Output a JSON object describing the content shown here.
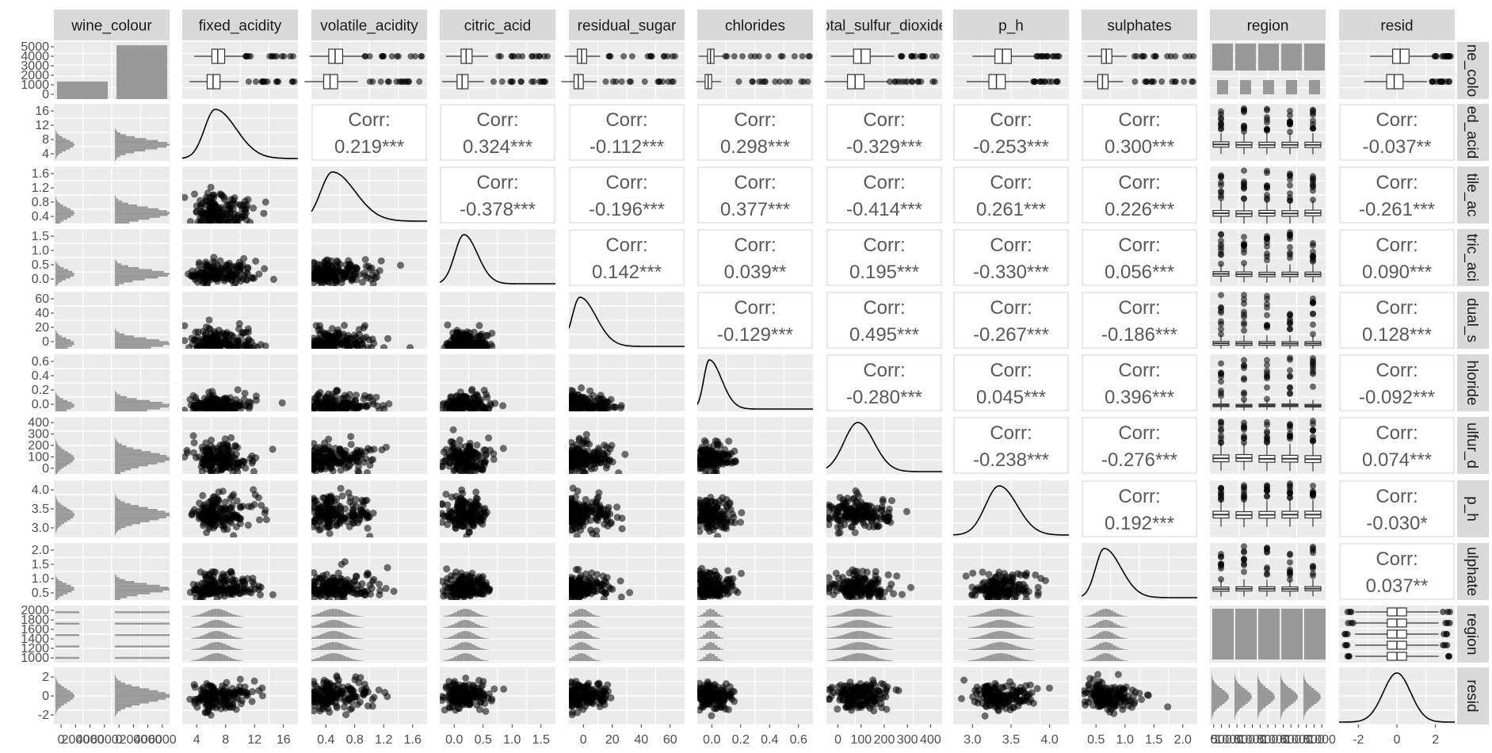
{
  "chart_data": {
    "type": "scatter",
    "layout": "pairs-matrix",
    "variables": [
      "wine_colour",
      "fixed_acidity",
      "volatile_acidity",
      "citric_acid",
      "residual_sugar",
      "chlorides",
      "total_sulfur_dioxide",
      "p_h",
      "sulphates",
      "region",
      "resid"
    ],
    "column_strips": [
      "wine_colour",
      "fixed_acidity",
      "volatile_acidity",
      "citric_acid",
      "residual_sugar",
      "chlorides",
      "otal_sulfur_dioxide",
      "p_h",
      "sulphates",
      "region",
      "resid"
    ],
    "row_strips": [
      "ne_colo",
      "ed_acid",
      "tile_ac",
      "tric_aci",
      "dual_s",
      "hloride",
      "ulfur_d",
      "p_h",
      "ulphate",
      "region",
      "resid"
    ],
    "x_ticks": [
      [
        "0",
        "2000",
        "4000",
        "6000",
        "0",
        "2000",
        "4000",
        "6000"
      ],
      [
        "4",
        "8",
        "12",
        "16"
      ],
      [
        "0.4",
        "0.8",
        "1.2",
        "1.6"
      ],
      [
        "0.0",
        "0.5",
        "1.0",
        "1.5"
      ],
      [
        "0",
        "20",
        "40",
        "60"
      ],
      [
        "0.0",
        "0.2",
        "0.4",
        "0.6"
      ],
      [
        "0",
        "100",
        "200",
        "300",
        "400"
      ],
      [
        "3.0",
        "3.5",
        "4.0"
      ],
      [
        "0.5",
        "1.0",
        "1.5",
        "2.0"
      ],
      [
        "0",
        "500",
        "1000",
        "0",
        "500",
        "1000",
        "0",
        "500",
        "1000",
        "0",
        "500",
        "1000",
        "0",
        "500",
        "1000"
      ],
      [
        "-2",
        "0",
        "2"
      ]
    ],
    "x_ranges": [
      [
        0,
        6600
      ],
      [
        3.5,
        16.5
      ],
      [
        0.05,
        1.65
      ],
      [
        -0.05,
        1.72
      ],
      [
        -1,
        67
      ],
      [
        -0.01,
        0.63
      ],
      [
        -10,
        450
      ],
      [
        2.68,
        4.04
      ],
      [
        0.16,
        2.05
      ],
      [
        0,
        1
      ],
      [
        -3.6,
        3.6
      ]
    ],
    "y_ticks": [
      [
        "0",
        "1000",
        "2000",
        "3000",
        "4000",
        "5000"
      ],
      [
        "4",
        "8",
        "12",
        "16"
      ],
      [
        "0.4",
        "0.8",
        "1.2",
        "1.6"
      ],
      [
        "0.0",
        "0.5",
        "1.0",
        "1.5"
      ],
      [
        "0",
        "20",
        "40",
        "60"
      ],
      [
        "0.0",
        "0.2",
        "0.4",
        "0.6"
      ],
      [
        "0",
        "100",
        "200",
        "300",
        "400"
      ],
      [
        "3.0",
        "3.5",
        "4.0"
      ],
      [
        "0.5",
        "1.0",
        "1.5",
        "2.0"
      ],
      [
        "1000",
        "1200",
        "1400",
        "1600",
        "1800",
        "2000"
      ],
      [
        "-2",
        "0",
        "2"
      ]
    ],
    "correlations": [
      {
        "row": 1,
        "col": 2,
        "label": "Corr:",
        "value": "0.219***"
      },
      {
        "row": 1,
        "col": 3,
        "label": "Corr:",
        "value": "0.324***"
      },
      {
        "row": 1,
        "col": 4,
        "label": "Corr:",
        "value": "-0.112***"
      },
      {
        "row": 1,
        "col": 5,
        "label": "Corr:",
        "value": "0.298***"
      },
      {
        "row": 1,
        "col": 6,
        "label": "Corr:",
        "value": "-0.329***"
      },
      {
        "row": 1,
        "col": 7,
        "label": "Corr:",
        "value": "-0.253***"
      },
      {
        "row": 1,
        "col": 8,
        "label": "Corr:",
        "value": "0.300***"
      },
      {
        "row": 1,
        "col": 10,
        "label": "Corr:",
        "value": "-0.037**"
      },
      {
        "row": 2,
        "col": 3,
        "label": "Corr:",
        "value": "-0.378***"
      },
      {
        "row": 2,
        "col": 4,
        "label": "Corr:",
        "value": "-0.196***"
      },
      {
        "row": 2,
        "col": 5,
        "label": "Corr:",
        "value": "0.377***"
      },
      {
        "row": 2,
        "col": 6,
        "label": "Corr:",
        "value": "-0.414***"
      },
      {
        "row": 2,
        "col": 7,
        "label": "Corr:",
        "value": "0.261***"
      },
      {
        "row": 2,
        "col": 8,
        "label": "Corr:",
        "value": "0.226***"
      },
      {
        "row": 2,
        "col": 10,
        "label": "Corr:",
        "value": "-0.261***"
      },
      {
        "row": 3,
        "col": 4,
        "label": "Corr:",
        "value": "0.142***"
      },
      {
        "row": 3,
        "col": 5,
        "label": "Corr:",
        "value": "0.039**"
      },
      {
        "row": 3,
        "col": 6,
        "label": "Corr:",
        "value": "0.195***"
      },
      {
        "row": 3,
        "col": 7,
        "label": "Corr:",
        "value": "-0.330***"
      },
      {
        "row": 3,
        "col": 8,
        "label": "Corr:",
        "value": "0.056***"
      },
      {
        "row": 3,
        "col": 10,
        "label": "Corr:",
        "value": "0.090***"
      },
      {
        "row": 4,
        "col": 5,
        "label": "Corr:",
        "value": "-0.129***"
      },
      {
        "row": 4,
        "col": 6,
        "label": "Corr:",
        "value": "0.495***"
      },
      {
        "row": 4,
        "col": 7,
        "label": "Corr:",
        "value": "-0.267***"
      },
      {
        "row": 4,
        "col": 8,
        "label": "Corr:",
        "value": "-0.186***"
      },
      {
        "row": 4,
        "col": 10,
        "label": "Corr:",
        "value": "0.128***"
      },
      {
        "row": 5,
        "col": 6,
        "label": "Corr:",
        "value": "-0.280***"
      },
      {
        "row": 5,
        "col": 7,
        "label": "Corr:",
        "value": "0.045***"
      },
      {
        "row": 5,
        "col": 8,
        "label": "Corr:",
        "value": "0.396***"
      },
      {
        "row": 5,
        "col": 10,
        "label": "Corr:",
        "value": "-0.092***"
      },
      {
        "row": 6,
        "col": 7,
        "label": "Corr:",
        "value": "-0.238***"
      },
      {
        "row": 6,
        "col": 8,
        "label": "Corr:",
        "value": "-0.276***"
      },
      {
        "row": 6,
        "col": 10,
        "label": "Corr:",
        "value": "0.074***"
      },
      {
        "row": 7,
        "col": 8,
        "label": "Corr:",
        "value": "0.192***"
      },
      {
        "row": 7,
        "col": 10,
        "label": "Corr:",
        "value": "-0.030*"
      },
      {
        "row": 8,
        "col": 10,
        "label": "Corr:",
        "value": "0.037**"
      }
    ],
    "wine_colour_counts": [
      1600,
      4900
    ],
    "region_counts": [
      1300,
      1300,
      1300,
      1300,
      1300
    ],
    "panel_background": "#ebebeb",
    "grid_color": "#ffffff",
    "strip_background": "#d9d9d9",
    "mark_color": "#000000",
    "bar_color": "#999999",
    "grid": true
  }
}
